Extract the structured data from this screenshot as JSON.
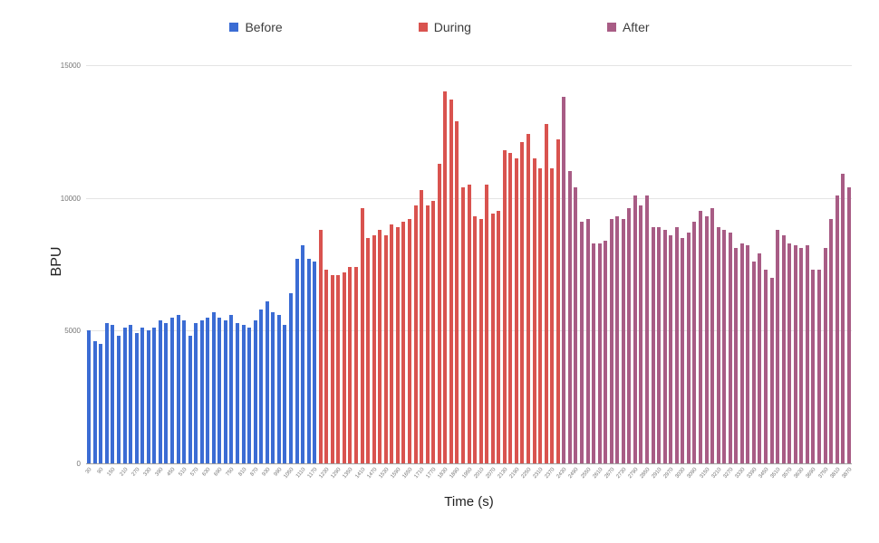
{
  "chart_data": {
    "type": "bar",
    "title": "",
    "xlabel": "Time (s)",
    "ylabel": "BPU",
    "ylim": [
      0,
      15000
    ],
    "yticks": [
      0,
      5000,
      10000,
      15000
    ],
    "legend_position": "top",
    "grid": true,
    "series": [
      {
        "name": "Before",
        "color": "#3b6cd4",
        "x": [
          30,
          60,
          90,
          120,
          150,
          180,
          210,
          240,
          270,
          300,
          330,
          360,
          390,
          420,
          450,
          480,
          510,
          540,
          570,
          600,
          630,
          660,
          690,
          720,
          750,
          780,
          810,
          840,
          870,
          900,
          930,
          960,
          990,
          1020,
          1050,
          1080,
          1110,
          1140,
          1170
        ],
        "values": [
          5000,
          4600,
          4500,
          5300,
          5200,
          4800,
          5100,
          5200,
          4900,
          5100,
          5000,
          5100,
          5400,
          5300,
          5500,
          5600,
          5400,
          4800,
          5300,
          5400,
          5500,
          5700,
          5500,
          5400,
          5600,
          5300,
          5200,
          5100,
          5400,
          5800,
          6100,
          5700,
          5600,
          5200,
          6400,
          7700,
          8200,
          7700,
          7600
        ]
      },
      {
        "name": "During",
        "color": "#d9534f",
        "x": [
          1200,
          1230,
          1260,
          1290,
          1320,
          1350,
          1380,
          1410,
          1440,
          1470,
          1500,
          1530,
          1560,
          1590,
          1620,
          1650,
          1680,
          1710,
          1740,
          1770,
          1800,
          1830,
          1860,
          1890,
          1920,
          1950,
          1980,
          2010,
          2040,
          2070,
          2100,
          2130,
          2160,
          2190,
          2220,
          2250,
          2280,
          2310,
          2340,
          2370,
          2400
        ],
        "values": [
          8800,
          7300,
          7100,
          7100,
          7200,
          7400,
          7400,
          9600,
          8500,
          8600,
          8800,
          8600,
          9000,
          8900,
          9100,
          9200,
          9700,
          10300,
          9700,
          9900,
          11300,
          14000,
          13700,
          12900,
          10400,
          10500,
          9300,
          9200,
          10500,
          9400,
          9500,
          11800,
          11700,
          11500,
          12100,
          12400,
          11500,
          11100,
          12800,
          11100,
          12200
        ]
      },
      {
        "name": "After",
        "color": "#a85c85",
        "x": [
          2430,
          2460,
          2490,
          2520,
          2550,
          2580,
          2610,
          2640,
          2670,
          2700,
          2730,
          2760,
          2790,
          2820,
          2850,
          2880,
          2910,
          2940,
          2970,
          3000,
          3030,
          3060,
          3090,
          3120,
          3150,
          3180,
          3210,
          3240,
          3270,
          3300,
          3330,
          3360,
          3390,
          3420,
          3450,
          3480,
          3510,
          3540,
          3570,
          3600,
          3630,
          3660,
          3690,
          3720,
          3750,
          3780,
          3810,
          3840,
          3870
        ],
        "values": [
          13800,
          11000,
          10400,
          9100,
          9200,
          8300,
          8300,
          8400,
          9200,
          9300,
          9200,
          9600,
          10100,
          9700,
          10100,
          8900,
          8900,
          8800,
          8600,
          8900,
          8500,
          8700,
          9100,
          9500,
          9300,
          9600,
          8900,
          8800,
          8700,
          8100,
          8300,
          8200,
          7600,
          7900,
          7300,
          7000,
          8800,
          8600,
          8300,
          8200,
          8100,
          8200,
          7300,
          7300,
          8100,
          9200,
          10100,
          10900,
          10400
        ]
      }
    ]
  }
}
